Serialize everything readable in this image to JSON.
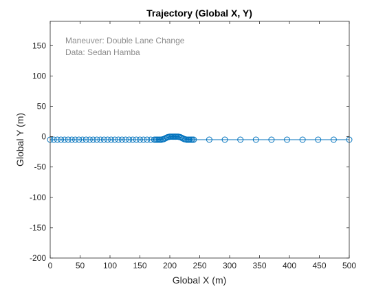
{
  "chart_data": {
    "type": "line",
    "title": "Trajectory (Global X, Y)",
    "xlabel": "Global X (m)",
    "ylabel": "Global Y (m)",
    "xlim": [
      0,
      500
    ],
    "ylim": [
      -200,
      190
    ],
    "xticks": [
      0,
      50,
      100,
      150,
      200,
      250,
      300,
      350,
      400,
      450,
      500
    ],
    "yticks": [
      -200,
      -150,
      -100,
      -50,
      0,
      50,
      100,
      150
    ],
    "grid": false,
    "annotations": [
      "Maneuver: Double Lane Change",
      "Data: Sedan Hamba"
    ],
    "series": [
      {
        "color": "#0072bd",
        "marker": "circle-open",
        "x": [
          0,
          6,
          12,
          18,
          24,
          30,
          36,
          42,
          48,
          54,
          60,
          66,
          72,
          78,
          84,
          90,
          96,
          102,
          108,
          114,
          120,
          126,
          132,
          138,
          144,
          150,
          156,
          162,
          168,
          174,
          176,
          178,
          180,
          182,
          184,
          186,
          188,
          190,
          192,
          194,
          196,
          198,
          200,
          202,
          204,
          206,
          208,
          210,
          212,
          214,
          216,
          218,
          220,
          222,
          224,
          226,
          228,
          230,
          232,
          234,
          236,
          238,
          240,
          266,
          292,
          318,
          344,
          370,
          396,
          422,
          448,
          474,
          500
        ],
        "y": [
          -5,
          -5,
          -5,
          -5,
          -5,
          -5,
          -5,
          -5,
          -5,
          -5,
          -5,
          -5,
          -5,
          -5,
          -5,
          -5,
          -5,
          -5,
          -5,
          -5,
          -5,
          -5,
          -5,
          -5,
          -5,
          -5,
          -5,
          -5,
          -5,
          -5,
          -5,
          -5,
          -5,
          -5,
          -5,
          -5,
          -4.5,
          -4,
          -3,
          -2,
          -1,
          -0.5,
          0,
          0,
          0,
          0,
          0,
          0,
          0,
          0,
          -0.5,
          -1,
          -2,
          -3,
          -4,
          -4.5,
          -5,
          -5,
          -5,
          -5,
          -5,
          -5,
          -5,
          -5,
          -5,
          -5,
          -5,
          -5,
          -5,
          -5,
          -5,
          -5,
          -5
        ]
      }
    ]
  }
}
